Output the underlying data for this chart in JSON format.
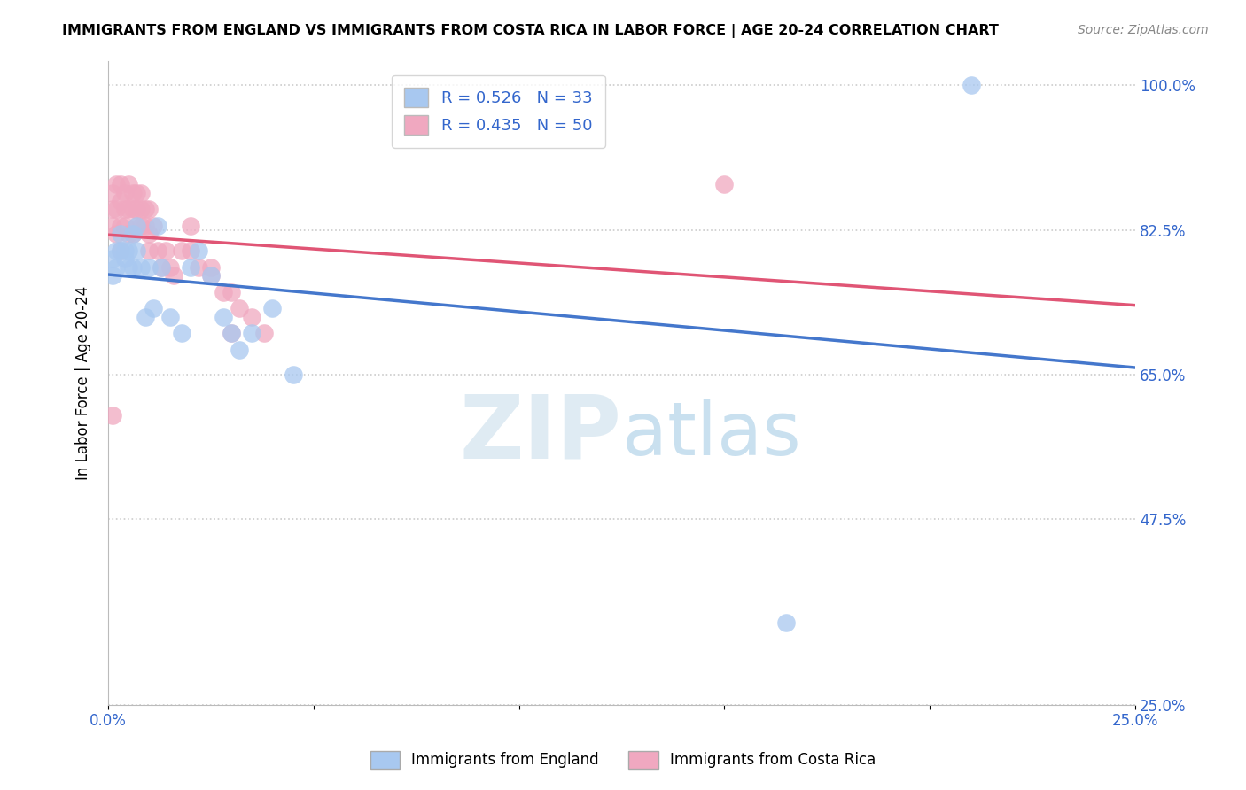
{
  "title": "IMMIGRANTS FROM ENGLAND VS IMMIGRANTS FROM COSTA RICA IN LABOR FORCE | AGE 20-24 CORRELATION CHART",
  "source": "Source: ZipAtlas.com",
  "ylabel": "In Labor Force | Age 20-24",
  "legend_labels": [
    "Immigrants from England",
    "Immigrants from Costa Rica"
  ],
  "england_R": 0.526,
  "england_N": 33,
  "costarica_R": 0.435,
  "costarica_N": 50,
  "xlim": [
    0.0,
    0.25
  ],
  "ylim": [
    0.25,
    1.03
  ],
  "xticks": [
    0.0,
    0.05,
    0.1,
    0.15,
    0.2,
    0.25
  ],
  "xtick_labels": [
    "0.0%",
    "",
    "",
    "",
    "",
    "25.0%"
  ],
  "yticks": [
    0.25,
    0.475,
    0.65,
    0.825,
    1.0
  ],
  "ytick_labels": [
    "25.0%",
    "47.5%",
    "65.0%",
    "82.5%",
    "100.0%"
  ],
  "england_color": "#a8c8f0",
  "costarica_color": "#f0a8c0",
  "england_line_color": "#4477cc",
  "costarica_line_color": "#e05575",
  "watermark_color": "#c8dff0",
  "england_x": [
    0.001,
    0.001,
    0.002,
    0.002,
    0.003,
    0.003,
    0.004,
    0.004,
    0.005,
    0.005,
    0.006,
    0.006,
    0.007,
    0.007,
    0.008,
    0.009,
    0.01,
    0.011,
    0.012,
    0.013,
    0.015,
    0.018,
    0.02,
    0.025,
    0.03,
    0.022,
    0.028,
    0.032,
    0.035,
    0.04,
    0.045,
    0.21,
    0.165
  ],
  "england_y": [
    0.77,
    0.79,
    0.78,
    0.8,
    0.8,
    0.82,
    0.8,
    0.79,
    0.78,
    0.8,
    0.78,
    0.82,
    0.8,
    0.83,
    0.78,
    0.72,
    0.78,
    0.73,
    0.83,
    0.78,
    0.72,
    0.7,
    0.78,
    0.77,
    0.7,
    0.8,
    0.72,
    0.68,
    0.7,
    0.73,
    0.65,
    1.0,
    0.35
  ],
  "costarica_x": [
    0.001,
    0.001,
    0.001,
    0.002,
    0.002,
    0.002,
    0.003,
    0.003,
    0.003,
    0.003,
    0.004,
    0.004,
    0.004,
    0.005,
    0.005,
    0.005,
    0.006,
    0.006,
    0.006,
    0.007,
    0.007,
    0.007,
    0.008,
    0.008,
    0.008,
    0.009,
    0.009,
    0.01,
    0.01,
    0.01,
    0.011,
    0.012,
    0.013,
    0.014,
    0.015,
    0.016,
    0.018,
    0.02,
    0.022,
    0.025,
    0.028,
    0.03,
    0.032,
    0.035,
    0.038,
    0.02,
    0.025,
    0.03,
    0.15,
    0.001
  ],
  "costarica_y": [
    0.83,
    0.85,
    0.87,
    0.82,
    0.85,
    0.88,
    0.8,
    0.83,
    0.86,
    0.88,
    0.83,
    0.85,
    0.87,
    0.82,
    0.85,
    0.88,
    0.82,
    0.85,
    0.87,
    0.83,
    0.85,
    0.87,
    0.83,
    0.85,
    0.87,
    0.83,
    0.85,
    0.8,
    0.82,
    0.85,
    0.83,
    0.8,
    0.78,
    0.8,
    0.78,
    0.77,
    0.8,
    0.8,
    0.78,
    0.77,
    0.75,
    0.75,
    0.73,
    0.72,
    0.7,
    0.83,
    0.78,
    0.7,
    0.88,
    0.6
  ]
}
